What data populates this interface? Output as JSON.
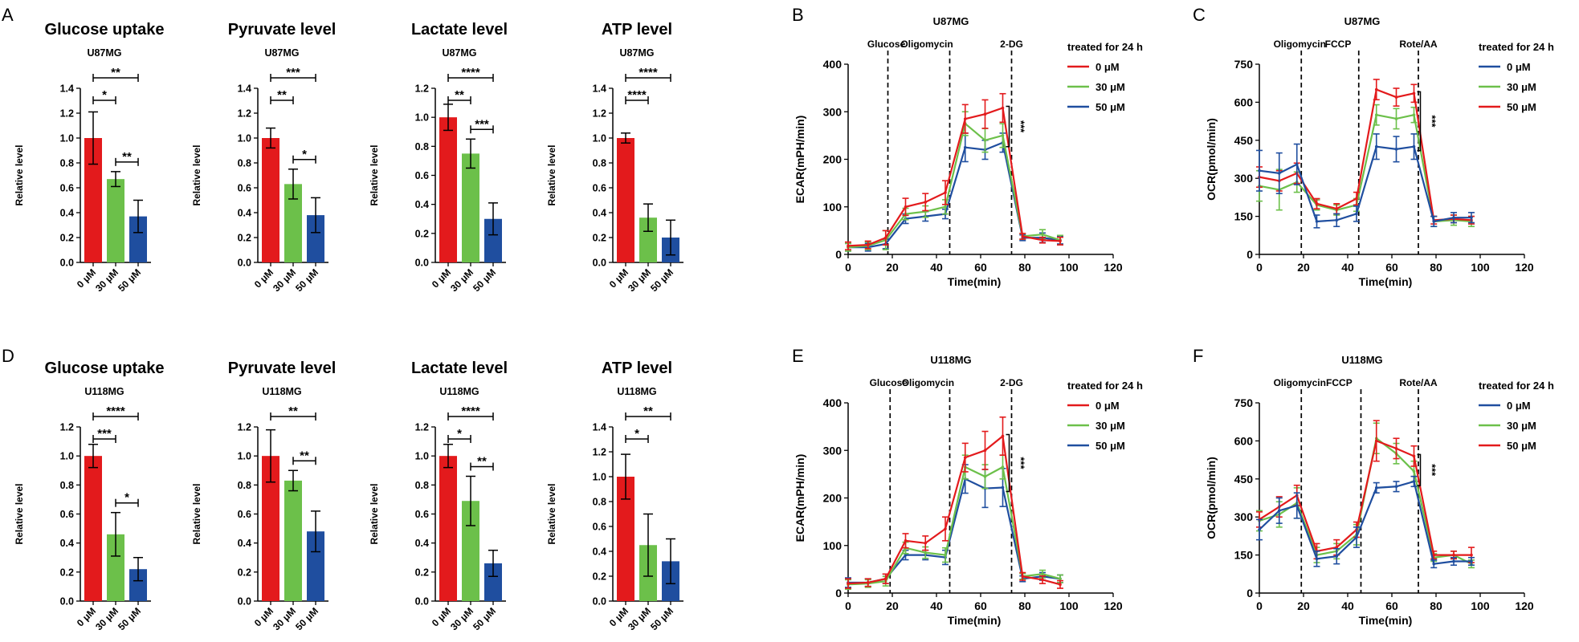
{
  "figure": {
    "colors": {
      "red": "#e31a1c",
      "green": "#6cc04a",
      "blue": "#1f4e9f",
      "axis": "#000000"
    }
  },
  "panel_letters": [
    "A",
    "B",
    "C",
    "D",
    "E",
    "F"
  ],
  "chart_data": [
    {
      "type": "bar",
      "row": 0,
      "col": 0,
      "title": "Glucose uptake",
      "subtitle": "U87MG",
      "categories": [
        "0 μM",
        "30 μM",
        "50 μM"
      ],
      "values": [
        1.0,
        0.67,
        0.37
      ],
      "errors": [
        0.21,
        0.06,
        0.13
      ],
      "ylabel": "Relative level",
      "ylim": [
        0,
        1.4
      ],
      "yticks": [
        "0.0",
        "0.2",
        "0.4",
        "0.6",
        "0.8",
        "1.0",
        "1.2",
        "1.4"
      ],
      "significance": [
        {
          "from": 0,
          "to": 2,
          "label": "**"
        },
        {
          "from": 0,
          "to": 1,
          "label": "*"
        },
        {
          "from": 1,
          "to": 2,
          "label": "**"
        }
      ]
    },
    {
      "type": "bar",
      "row": 0,
      "col": 1,
      "title": "Pyruvate level",
      "subtitle": "U87MG",
      "categories": [
        "0 μM",
        "30 μM",
        "50 μM"
      ],
      "values": [
        1.0,
        0.63,
        0.38
      ],
      "errors": [
        0.08,
        0.12,
        0.14
      ],
      "ylabel": "Relative level",
      "ylim": [
        0,
        1.4
      ],
      "yticks": [
        "0.0",
        "0.2",
        "0.4",
        "0.6",
        "0.8",
        "1.0",
        "1.2",
        "1.4"
      ],
      "significance": [
        {
          "from": 0,
          "to": 2,
          "label": "***"
        },
        {
          "from": 0,
          "to": 1,
          "label": "**"
        },
        {
          "from": 1,
          "to": 2,
          "label": "*"
        }
      ]
    },
    {
      "type": "bar",
      "row": 0,
      "col": 2,
      "title": "Lactate level",
      "subtitle": "U87MG",
      "categories": [
        "0 μM",
        "30 μM",
        "50 μM"
      ],
      "values": [
        1.0,
        0.75,
        0.3
      ],
      "errors": [
        0.09,
        0.1,
        0.11
      ],
      "ylabel": "Relative level",
      "ylim": [
        0,
        1.2
      ],
      "yticks": [
        "0.0",
        "0.2",
        "0.4",
        "0.6",
        "0.8",
        "1.0",
        "1.2"
      ],
      "significance": [
        {
          "from": 0,
          "to": 2,
          "label": "****"
        },
        {
          "from": 0,
          "to": 1,
          "label": "**"
        },
        {
          "from": 1,
          "to": 2,
          "label": "***"
        }
      ]
    },
    {
      "type": "bar",
      "row": 0,
      "col": 3,
      "title": "ATP level",
      "subtitle": "U87MG",
      "categories": [
        "0 μM",
        "30 μM",
        "50 μM"
      ],
      "values": [
        1.0,
        0.36,
        0.2
      ],
      "errors": [
        0.04,
        0.11,
        0.14
      ],
      "ylabel": "Relative level",
      "ylim": [
        0,
        1.4
      ],
      "yticks": [
        "0.0",
        "0.2",
        "0.4",
        "0.6",
        "0.8",
        "1.0",
        "1.2",
        "1.4"
      ],
      "significance": [
        {
          "from": 0,
          "to": 2,
          "label": "****"
        },
        {
          "from": 0,
          "to": 1,
          "label": "****"
        }
      ]
    },
    {
      "type": "line",
      "row": 0,
      "col": 4,
      "title": "U87MG",
      "xlabel": "Time(min)",
      "ylabel": "ECAR(mPH/min)",
      "xlim": [
        0,
        120
      ],
      "ylim": [
        0,
        400
      ],
      "xticks": [
        0,
        20,
        40,
        60,
        80,
        100,
        120
      ],
      "yticks": [
        0,
        100,
        200,
        300,
        400
      ],
      "vlines": [
        {
          "x": 18,
          "label": "Glucose"
        },
        {
          "x": 46,
          "label": "Oligomycin"
        },
        {
          "x": 74,
          "label": "2-DG"
        }
      ],
      "legend_title": "treated for 24 h",
      "legend": [
        {
          "name": "0 μM",
          "color": "red"
        },
        {
          "name": "30 μM",
          "color": "green"
        },
        {
          "name": "50 μM",
          "color": "blue"
        }
      ],
      "sig_label": "***",
      "x": [
        0,
        9,
        17,
        26,
        35,
        44,
        53,
        62,
        70,
        79,
        88,
        96
      ],
      "series": [
        {
          "name": "0 μM",
          "color": "red",
          "values": [
            18,
            20,
            35,
            100,
            110,
            130,
            285,
            295,
            308,
            38,
            30,
            28
          ],
          "errors": [
            8,
            8,
            15,
            18,
            18,
            25,
            30,
            30,
            30,
            6,
            6,
            8
          ]
        },
        {
          "name": "30 μM",
          "color": "green",
          "values": [
            15,
            18,
            30,
            85,
            90,
            100,
            275,
            240,
            250,
            38,
            42,
            30
          ],
          "errors": [
            8,
            8,
            20,
            12,
            12,
            15,
            25,
            25,
            25,
            6,
            10,
            10
          ]
        },
        {
          "name": "50 μM",
          "color": "blue",
          "values": [
            15,
            15,
            22,
            75,
            80,
            85,
            225,
            220,
            235,
            35,
            35,
            30
          ],
          "errors": [
            8,
            8,
            10,
            10,
            10,
            10,
            30,
            20,
            20,
            6,
            10,
            8
          ]
        }
      ],
      "draw_order": [
        2,
        1,
        0
      ]
    },
    {
      "type": "line",
      "row": 0,
      "col": 5,
      "title": "U87MG",
      "xlabel": "Time(min)",
      "ylabel": "OCR(pmol/min)",
      "xlim": [
        0,
        120
      ],
      "ylim": [
        0,
        750
      ],
      "xticks": [
        0,
        20,
        40,
        60,
        80,
        100,
        120
      ],
      "yticks": [
        0,
        150,
        300,
        450,
        600,
        750
      ],
      "vlines": [
        {
          "x": 19,
          "label": "Oligomycin"
        },
        {
          "x": 45,
          "label": "FCCP"
        },
        {
          "x": 72,
          "label": "Rote/AA"
        }
      ],
      "legend_title": "treated for 24 h",
      "legend": [
        {
          "name": "0 μM",
          "color": "blue"
        },
        {
          "name": "30 μM",
          "color": "green"
        },
        {
          "name": "50 μM",
          "color": "red"
        }
      ],
      "sig_label": "***",
      "x": [
        0,
        9,
        17,
        26,
        35,
        44,
        53,
        62,
        70,
        79,
        88,
        96
      ],
      "series": [
        {
          "name": "0 μM",
          "color": "blue",
          "values": [
            330,
            320,
            355,
            130,
            135,
            160,
            425,
            415,
            425,
            130,
            145,
            145
          ],
          "errors": [
            80,
            80,
            80,
            25,
            25,
            30,
            50,
            50,
            50,
            20,
            20,
            20
          ]
        },
        {
          "name": "30 μM",
          "color": "green",
          "values": [
            270,
            255,
            285,
            195,
            175,
            195,
            550,
            535,
            550,
            130,
            135,
            130
          ],
          "errors": [
            60,
            80,
            40,
            20,
            20,
            25,
            40,
            40,
            30,
            20,
            20,
            20
          ]
        },
        {
          "name": "50 μM",
          "color": "red",
          "values": [
            305,
            290,
            320,
            200,
            180,
            220,
            650,
            620,
            635,
            135,
            140,
            135
          ],
          "errors": [
            40,
            40,
            40,
            20,
            20,
            25,
            40,
            35,
            35,
            15,
            15,
            15
          ]
        }
      ],
      "draw_order": [
        1,
        2,
        0
      ]
    },
    {
      "type": "bar",
      "row": 1,
      "col": 0,
      "title": "Glucose uptake",
      "subtitle": "U118MG",
      "categories": [
        "0 μM",
        "30 μM",
        "50 μM"
      ],
      "values": [
        1.0,
        0.46,
        0.22
      ],
      "errors": [
        0.08,
        0.15,
        0.08
      ],
      "ylabel": "Relative level",
      "ylim": [
        0,
        1.2
      ],
      "yticks": [
        "0.0",
        "0.2",
        "0.4",
        "0.6",
        "0.8",
        "1.0",
        "1.2"
      ],
      "significance": [
        {
          "from": 0,
          "to": 2,
          "label": "****"
        },
        {
          "from": 0,
          "to": 1,
          "label": "***"
        },
        {
          "from": 1,
          "to": 2,
          "label": "*"
        }
      ]
    },
    {
      "type": "bar",
      "row": 1,
      "col": 1,
      "title": "Pyruvate level",
      "subtitle": "U118MG",
      "categories": [
        "0 μM",
        "30 μM",
        "50 μM"
      ],
      "values": [
        1.0,
        0.83,
        0.48
      ],
      "errors": [
        0.18,
        0.07,
        0.14
      ],
      "ylabel": "Relative level",
      "ylim": [
        0,
        1.2
      ],
      "yticks": [
        "0.0",
        "0.2",
        "0.4",
        "0.6",
        "0.8",
        "1.0",
        "1.2"
      ],
      "significance": [
        {
          "from": 0,
          "to": 2,
          "label": "**"
        },
        {
          "from": 1,
          "to": 2,
          "label": "**"
        }
      ]
    },
    {
      "type": "bar",
      "row": 1,
      "col": 2,
      "title": "Lactate level",
      "subtitle": "U118MG",
      "categories": [
        "0 μM",
        "30 μM",
        "50 μM"
      ],
      "values": [
        1.0,
        0.69,
        0.26
      ],
      "errors": [
        0.08,
        0.17,
        0.09
      ],
      "ylabel": "Relative level",
      "ylim": [
        0,
        1.2
      ],
      "yticks": [
        "0.0",
        "0.2",
        "0.4",
        "0.6",
        "0.8",
        "1.0",
        "1.2"
      ],
      "significance": [
        {
          "from": 0,
          "to": 2,
          "label": "****"
        },
        {
          "from": 0,
          "to": 1,
          "label": "*"
        },
        {
          "from": 1,
          "to": 2,
          "label": "**"
        }
      ]
    },
    {
      "type": "bar",
      "row": 1,
      "col": 3,
      "title": "ATP level",
      "subtitle": "U118MG",
      "categories": [
        "0 μM",
        "30 μM",
        "50 μM"
      ],
      "values": [
        1.0,
        0.45,
        0.32
      ],
      "errors": [
        0.18,
        0.25,
        0.18
      ],
      "ylabel": "Relative level",
      "ylim": [
        0,
        1.4
      ],
      "yticks": [
        "0.0",
        "0.2",
        "0.4",
        "0.6",
        "0.8",
        "1.0",
        "1.2",
        "1.4"
      ],
      "significance": [
        {
          "from": 0,
          "to": 2,
          "label": "**"
        },
        {
          "from": 0,
          "to": 1,
          "label": "*"
        }
      ]
    },
    {
      "type": "line",
      "row": 1,
      "col": 4,
      "title": "U118MG",
      "xlabel": "Time(min)",
      "ylabel": "ECAR(mPH/min)",
      "xlim": [
        0,
        120
      ],
      "ylim": [
        0,
        400
      ],
      "xticks": [
        0,
        20,
        40,
        60,
        80,
        100,
        120
      ],
      "yticks": [
        0,
        100,
        200,
        300,
        400
      ],
      "vlines": [
        {
          "x": 19,
          "label": "Glucose"
        },
        {
          "x": 46,
          "label": "Oligomycin"
        },
        {
          "x": 74,
          "label": "2-DG"
        }
      ],
      "legend_title": "treated for 24 h",
      "legend": [
        {
          "name": "0 μM",
          "color": "red"
        },
        {
          "name": "30 μM",
          "color": "green"
        },
        {
          "name": "50 μM",
          "color": "blue"
        }
      ],
      "sig_label": "***",
      "x": [
        0,
        9,
        17,
        26,
        35,
        44,
        53,
        62,
        70,
        79,
        88,
        96
      ],
      "series": [
        {
          "name": "0 μM",
          "color": "red",
          "values": [
            20,
            22,
            30,
            110,
            105,
            135,
            285,
            300,
            330,
            35,
            28,
            18
          ],
          "errors": [
            10,
            8,
            10,
            15,
            15,
            25,
            30,
            40,
            40,
            8,
            8,
            8
          ]
        },
        {
          "name": "30 μM",
          "color": "green",
          "values": [
            18,
            20,
            25,
            95,
            85,
            80,
            265,
            245,
            265,
            35,
            40,
            30
          ],
          "errors": [
            10,
            8,
            10,
            12,
            12,
            15,
            25,
            25,
            25,
            6,
            8,
            8
          ]
        },
        {
          "name": "50 μM",
          "color": "blue",
          "values": [
            22,
            22,
            30,
            80,
            80,
            75,
            240,
            220,
            222,
            30,
            35,
            30
          ],
          "errors": [
            10,
            8,
            10,
            10,
            10,
            15,
            30,
            40,
            40,
            6,
            8,
            8
          ]
        }
      ],
      "draw_order": [
        2,
        1,
        0
      ]
    },
    {
      "type": "line",
      "row": 1,
      "col": 5,
      "title": "U118MG",
      "xlabel": "Time(min)",
      "ylabel": "OCR(pmol/min)",
      "xlim": [
        0,
        120
      ],
      "ylim": [
        0,
        750
      ],
      "xticks": [
        0,
        20,
        40,
        60,
        80,
        100,
        120
      ],
      "yticks": [
        0,
        150,
        300,
        450,
        600,
        750
      ],
      "vlines": [
        {
          "x": 19,
          "label": "Oligomycin"
        },
        {
          "x": 46,
          "label": "FCCP"
        },
        {
          "x": 72,
          "label": "Rote/AA"
        }
      ],
      "legend_title": "treated for 24 h",
      "legend": [
        {
          "name": "0 μM",
          "color": "blue"
        },
        {
          "name": "30 μM",
          "color": "green"
        },
        {
          "name": "50 μM",
          "color": "red"
        }
      ],
      "sig_label": "***",
      "x": [
        0,
        9,
        17,
        26,
        35,
        44,
        53,
        62,
        70,
        79,
        88,
        96
      ],
      "series": [
        {
          "name": "0 μM",
          "color": "blue",
          "values": [
            250,
            325,
            345,
            135,
            145,
            220,
            415,
            420,
            440,
            115,
            125,
            125
          ],
          "errors": [
            40,
            50,
            50,
            30,
            30,
            40,
            20,
            20,
            20,
            15,
            15,
            15
          ]
        },
        {
          "name": "30 μM",
          "color": "green",
          "values": [
            285,
            310,
            355,
            150,
            165,
            230,
            610,
            550,
            480,
            140,
            150,
            115
          ],
          "errors": [
            40,
            50,
            60,
            30,
            30,
            40,
            60,
            40,
            40,
            15,
            15,
            15
          ]
        },
        {
          "name": "50 μM",
          "color": "red",
          "values": [
            290,
            340,
            385,
            165,
            180,
            250,
            600,
            570,
            540,
            150,
            150,
            150
          ],
          "errors": [
            30,
            40,
            40,
            30,
            30,
            30,
            80,
            40,
            40,
            15,
            15,
            30
          ]
        }
      ],
      "draw_order": [
        1,
        2,
        0
      ]
    }
  ]
}
